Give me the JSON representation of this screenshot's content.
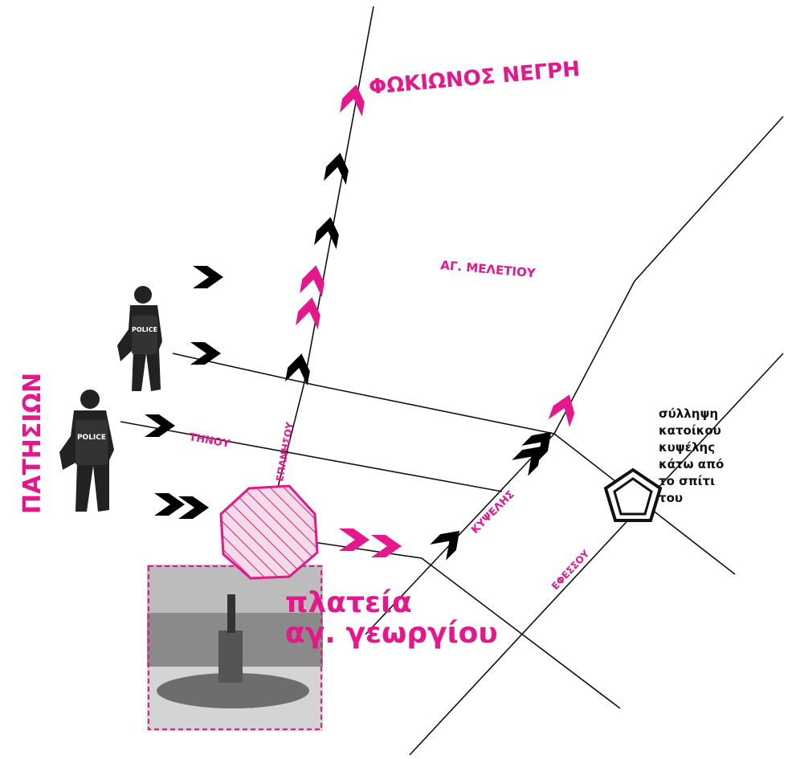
{
  "streets": {
    "fokionos": "ΦΩΚΙΩΝΟΣ ΝΕΓΡΗ",
    "meletiou": "ΑΓ. ΜΕΛΕΤΙΟΥ",
    "patision": "ΠΑΤΗΣΙΩΝ",
    "tinou": "ΤΗΝΟΥ",
    "epanisou": "ΕΠΑΝΗΣΟΥ",
    "kypselis": "ΚΥΨΕΛΗΣ",
    "efesou": "ΕΦΕΣΣΟΥ"
  },
  "place": {
    "lines": [
      "πλατεία",
      "αγ. γεωργίου"
    ]
  },
  "note": {
    "lines": [
      "σύλληψη",
      "κατοίκου",
      "κυψέλης",
      "κάτω από",
      "το σπίτι",
      "του"
    ]
  },
  "police": [
    {
      "label": "POLICE"
    },
    {
      "label": "POLICE"
    }
  ]
}
